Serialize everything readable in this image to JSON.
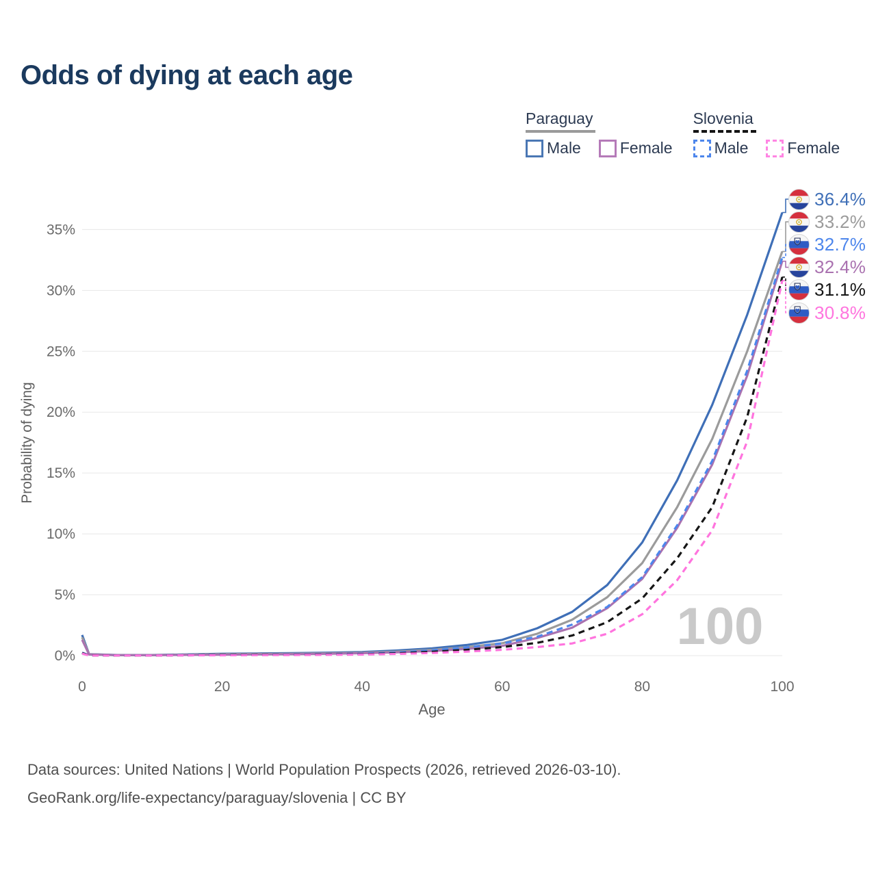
{
  "title": "Odds of dying at each age",
  "legend": {
    "groups": [
      {
        "country": "Paraguay",
        "line": "solid",
        "line_color": "#9a9a9a",
        "items": [
          {
            "label": "Male",
            "color": "#4a77b4",
            "dashed": false
          },
          {
            "label": "Female",
            "color": "#b57ab8",
            "dashed": false
          }
        ]
      },
      {
        "country": "Slovenia",
        "line": "dashed",
        "line_color": "#141414",
        "items": [
          {
            "label": "Male",
            "color": "#4d86ec",
            "dashed": true
          },
          {
            "label": "Female",
            "color": "#ff85e3",
            "dashed": true
          }
        ]
      }
    ]
  },
  "watermark": "100",
  "chart_data": {
    "type": "line",
    "title": "Odds of dying at each age",
    "xlabel": "Age",
    "ylabel": "Probability of dying",
    "xlim": [
      0,
      100
    ],
    "ylim": [
      0,
      37.5
    ],
    "x_ticks": [
      0,
      20,
      40,
      60,
      80,
      100
    ],
    "y_ticks": [
      "0%",
      "5%",
      "10%",
      "15%",
      "20%",
      "25%",
      "30%",
      "35%"
    ],
    "grid": "horizontal",
    "legend_position": "top-right",
    "x": [
      0,
      1,
      5,
      10,
      15,
      20,
      25,
      30,
      35,
      40,
      45,
      50,
      55,
      60,
      65,
      70,
      75,
      80,
      85,
      90,
      95,
      100
    ],
    "series": [
      {
        "name": "Paraguay Male",
        "country": "paraguay",
        "sex": "male",
        "color": "#3f6fb7",
        "dash": "solid",
        "end_label": "36.4%",
        "values": [
          1.7,
          0.12,
          0.05,
          0.05,
          0.1,
          0.16,
          0.18,
          0.2,
          0.24,
          0.3,
          0.42,
          0.6,
          0.88,
          1.3,
          2.25,
          3.6,
          5.8,
          9.3,
          14.4,
          20.6,
          28.0,
          36.4
        ]
      },
      {
        "name": "Paraguay Both sexes",
        "country": "paraguay",
        "sex": "both",
        "color": "#9b9b9b",
        "dash": "solid",
        "end_label": "33.2%",
        "values": [
          1.5,
          0.11,
          0.04,
          0.04,
          0.08,
          0.12,
          0.14,
          0.16,
          0.19,
          0.24,
          0.33,
          0.48,
          0.7,
          1.02,
          1.8,
          2.95,
          4.8,
          7.6,
          12.2,
          17.8,
          25.0,
          33.2
        ]
      },
      {
        "name": "Paraguay Female",
        "country": "paraguay",
        "sex": "female",
        "color": "#aa72b0",
        "dash": "solid",
        "end_label": "32.4%",
        "values": [
          1.3,
          0.09,
          0.04,
          0.04,
          0.06,
          0.08,
          0.1,
          0.12,
          0.15,
          0.2,
          0.27,
          0.38,
          0.55,
          0.8,
          1.45,
          2.3,
          3.9,
          6.3,
          10.5,
          15.7,
          23.0,
          32.4
        ]
      },
      {
        "name": "Slovenia Male",
        "country": "slovenia",
        "sex": "male",
        "color": "#4d86ec",
        "dash": "dashed",
        "end_label": "32.7%",
        "values": [
          0.25,
          0.02,
          0.01,
          0.01,
          0.04,
          0.07,
          0.08,
          0.09,
          0.11,
          0.16,
          0.26,
          0.44,
          0.68,
          1.0,
          1.55,
          2.55,
          4.0,
          6.45,
          10.7,
          16.0,
          23.4,
          32.7
        ]
      },
      {
        "name": "Slovenia Both sexes",
        "country": "slovenia",
        "sex": "both",
        "color": "#161616",
        "dash": "dashed",
        "end_label": "31.1%",
        "values": [
          0.21,
          0.02,
          0.01,
          0.01,
          0.03,
          0.05,
          0.06,
          0.07,
          0.09,
          0.12,
          0.19,
          0.32,
          0.48,
          0.7,
          1.05,
          1.65,
          2.75,
          4.7,
          8.0,
          12.2,
          19.6,
          31.1
        ]
      },
      {
        "name": "Slovenia Female",
        "country": "slovenia",
        "sex": "female",
        "color": "#ff74de",
        "dash": "dashed",
        "end_label": "30.8%",
        "values": [
          0.17,
          0.01,
          0.01,
          0.01,
          0.02,
          0.03,
          0.04,
          0.05,
          0.06,
          0.09,
          0.14,
          0.22,
          0.33,
          0.48,
          0.7,
          1.0,
          1.8,
          3.4,
          6.2,
          10.3,
          17.6,
          30.8
        ]
      }
    ]
  },
  "footer": {
    "line1": "Data sources: United Nations | World Population Prospects (2026, retrieved 2026-03-10).",
    "line2": "GeoRank.org/life-expectancy/paraguay/slovenia | CC BY"
  }
}
